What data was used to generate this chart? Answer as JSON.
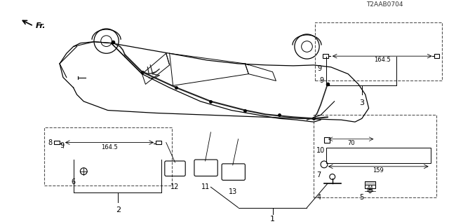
{
  "bg_color": "#ffffff",
  "line_color": "#000000",
  "diagram_color": "#888888",
  "dashed_color": "#666666",
  "part_number": "T2AAB0704",
  "arrow_label": "Fr.",
  "label1": "1",
  "label2": "2",
  "label3": "3",
  "label4": "4",
  "label5": "5",
  "label6": "6",
  "label7": "7",
  "label8": "8",
  "label9": "9",
  "label10": "10",
  "label11": "11",
  "label12": "12",
  "label13": "13",
  "dim_44": "44",
  "dim_159": "159",
  "dim_70": "70",
  "dim_164_5_left": "164.5",
  "dim_164_5_right": "164.5",
  "dim_9_left": "9",
  "dim_9_right": "9"
}
